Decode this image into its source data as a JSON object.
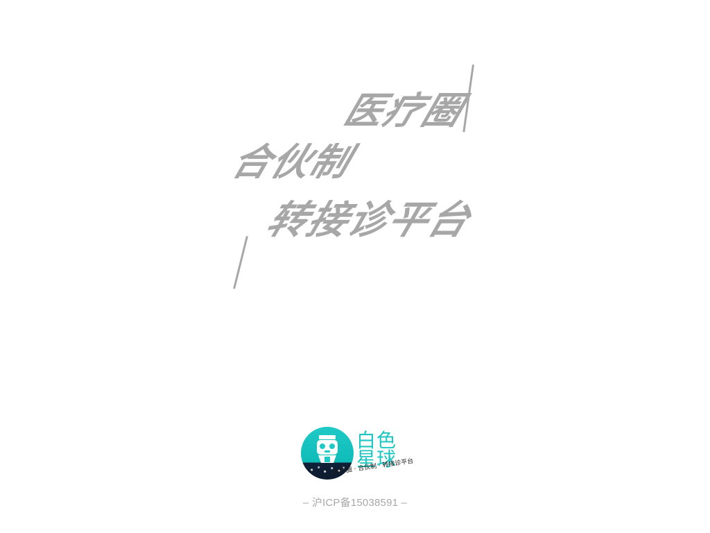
{
  "slogan": {
    "line1": "医疗圈",
    "line2": "合伙制",
    "line3": "转接诊平台"
  },
  "brand": {
    "title": "白色星球",
    "tagline": "医疗圈 · 合伙制 · 转接诊平台",
    "icon": "robot-icon"
  },
  "footer": {
    "icp": "– 沪ICP备15038591 –"
  },
  "colors": {
    "slogan": "#a7a7a7",
    "brand_accent": "#20c6c2",
    "brand_dark": "#102138",
    "footer_text": "#a8a8a8"
  }
}
